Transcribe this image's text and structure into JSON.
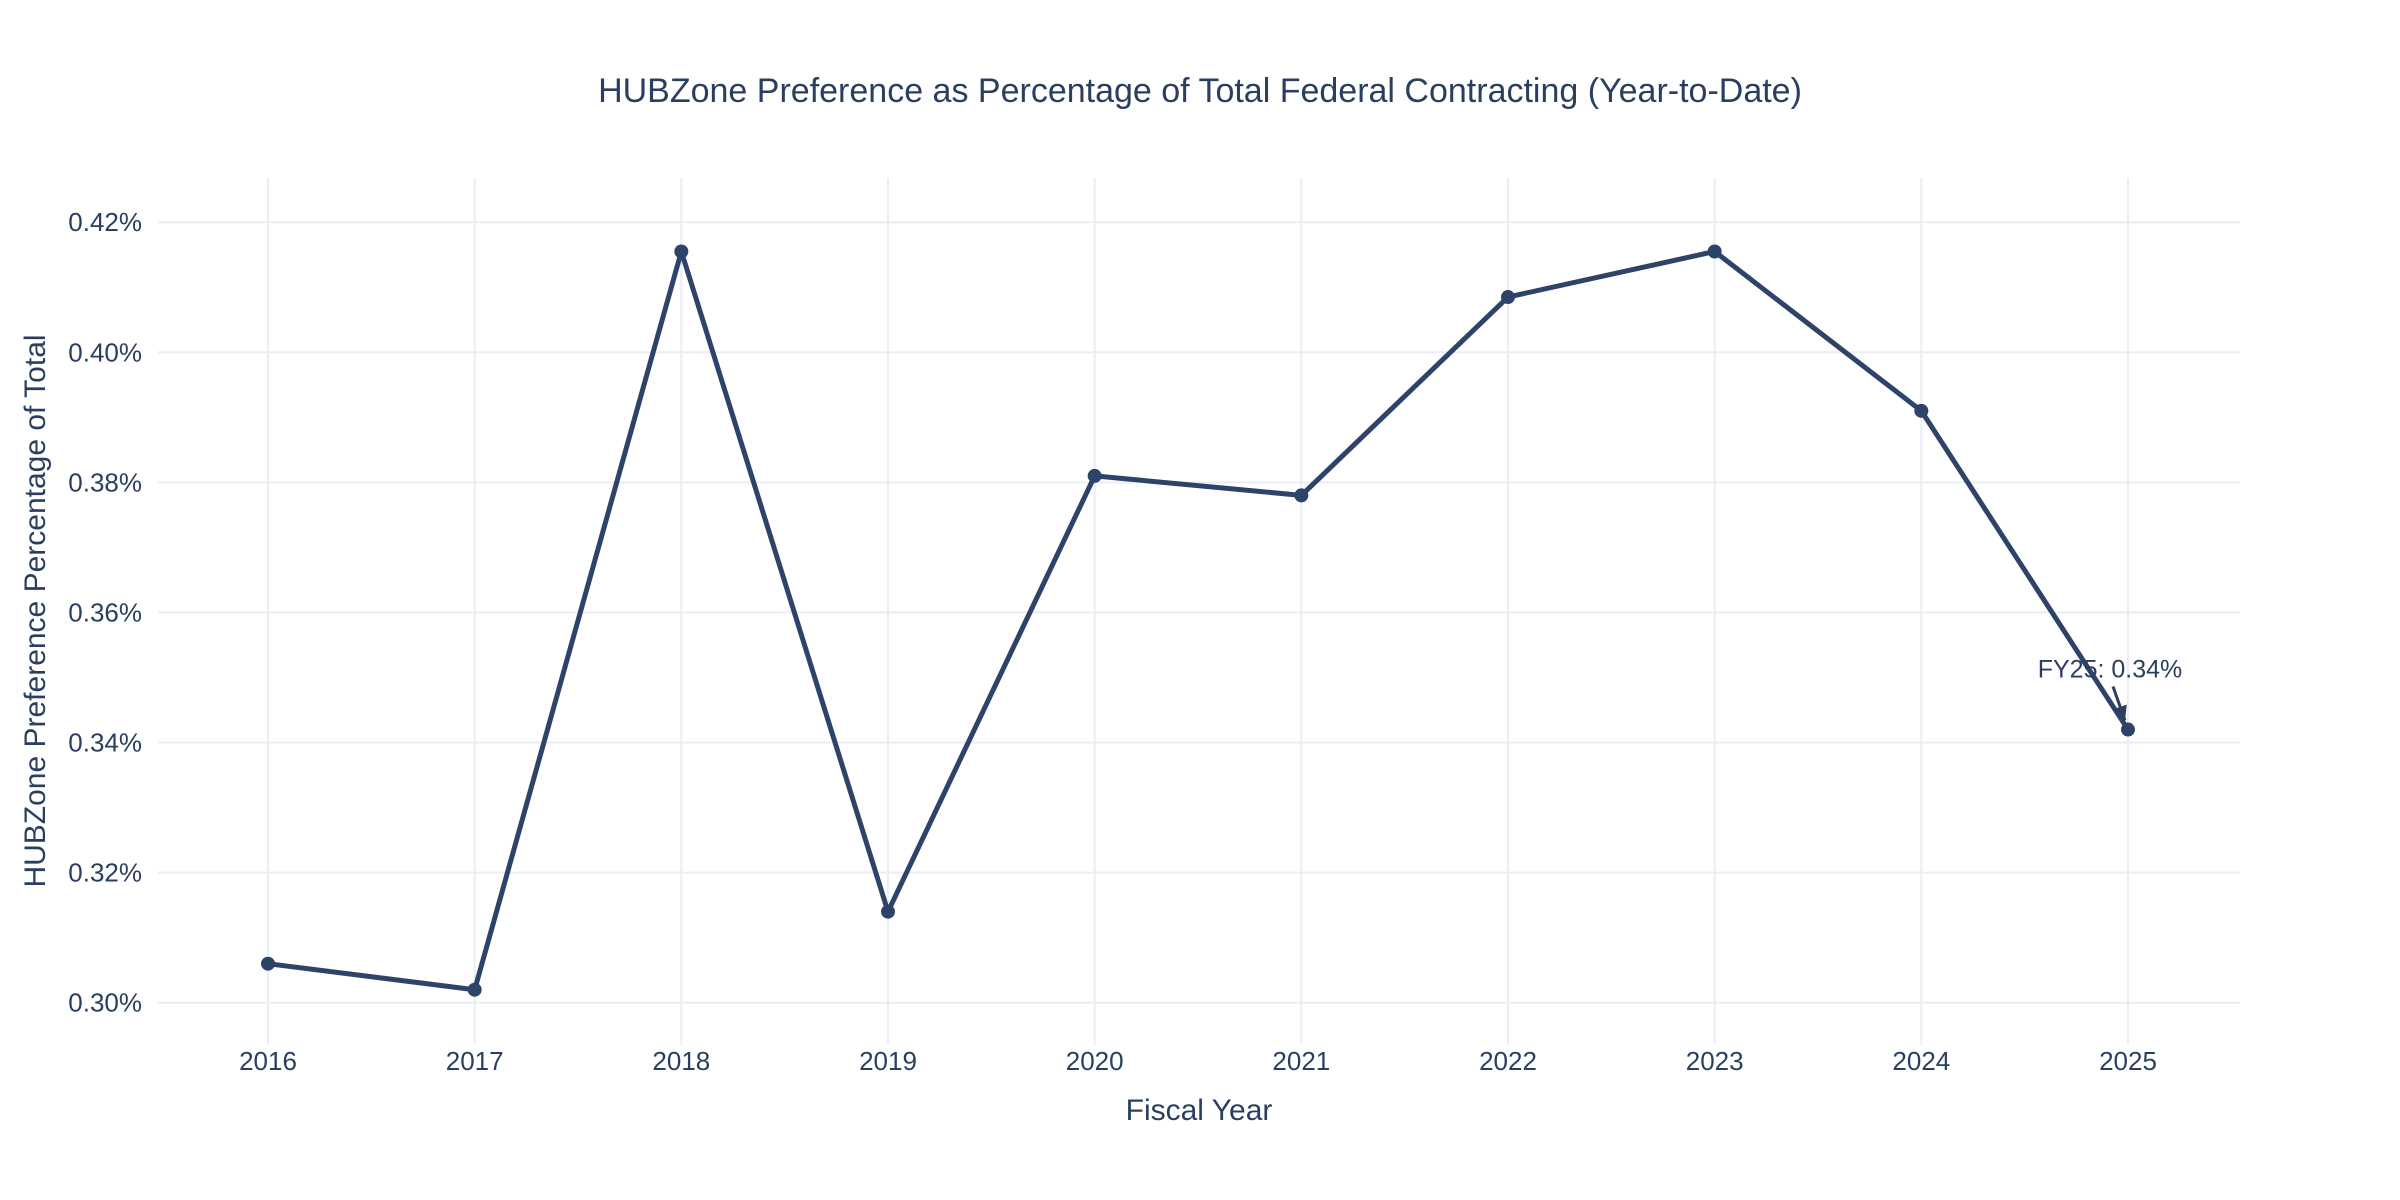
{
  "chart_data": {
    "type": "line",
    "title": "HUBZone Preference as Percentage of Total Federal Contracting (Year-to-Date)",
    "xlabel": "Fiscal Year",
    "ylabel": "HUBZone Preference Percentage of Total",
    "categories": [
      "2016",
      "2017",
      "2018",
      "2019",
      "2020",
      "2021",
      "2022",
      "2023",
      "2024",
      "2025"
    ],
    "values": [
      0.306,
      0.302,
      0.4155,
      0.314,
      0.381,
      0.378,
      0.4085,
      0.4155,
      0.391,
      0.342
    ],
    "unit": "percent",
    "yticks": [
      {
        "value": 0.3,
        "label": "0.30%"
      },
      {
        "value": 0.32,
        "label": "0.32%"
      },
      {
        "value": 0.34,
        "label": "0.34%"
      },
      {
        "value": 0.36,
        "label": "0.36%"
      },
      {
        "value": 0.38,
        "label": "0.38%"
      },
      {
        "value": 0.4,
        "label": "0.40%"
      },
      {
        "value": 0.42,
        "label": "0.42%"
      }
    ],
    "ylim": [
      0.2935,
      0.4268
    ],
    "grid": true,
    "legend_position": "none",
    "annotation": {
      "text": "FY25: 0.34%",
      "target_category": "2025",
      "target_value": 0.342
    },
    "colors": {
      "line": "#2e4369",
      "marker": "#2e4369",
      "text": "#2a3f5f",
      "grid": "#e9eef4",
      "background": "#ffffff"
    }
  }
}
